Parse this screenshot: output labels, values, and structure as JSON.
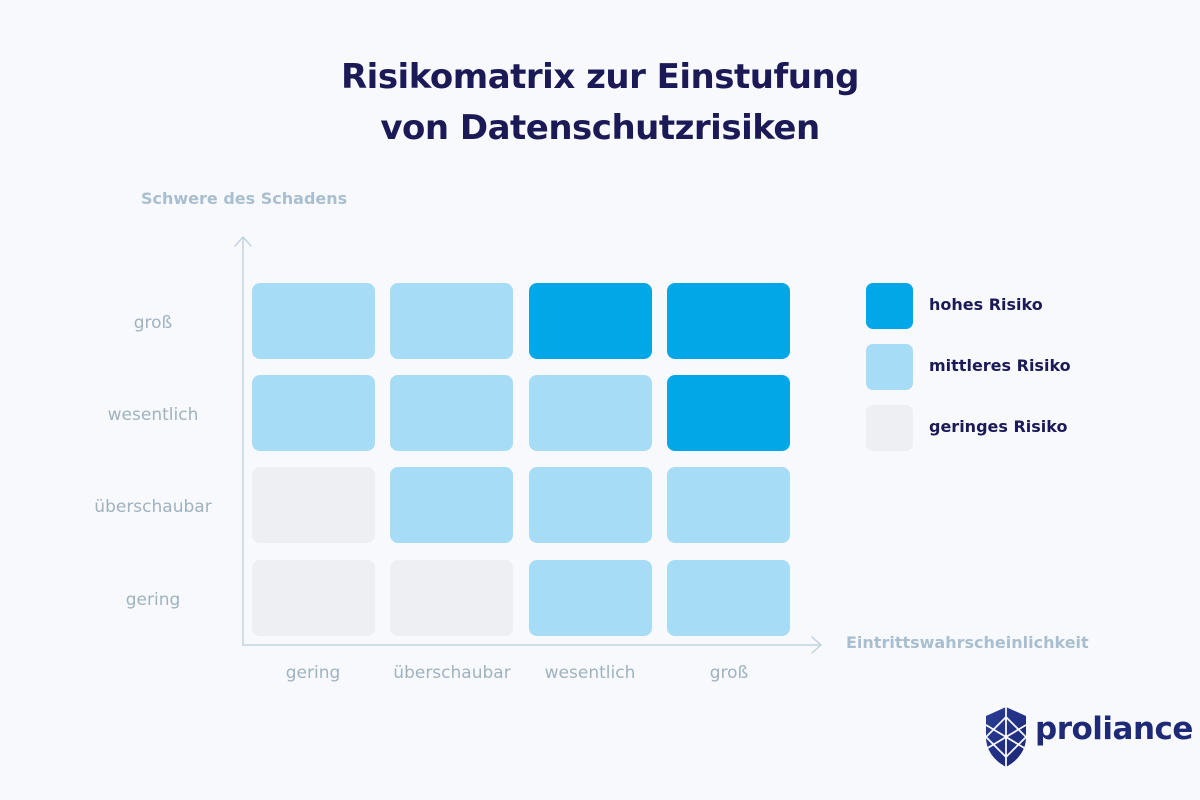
{
  "title": {
    "line1": "Risikomatrix zur Einstufung",
    "line2": "von Datenschutzrisiken"
  },
  "axes": {
    "y_title": "Schwere des Schadens",
    "x_title": "Eintrittswahrscheinlichkeit"
  },
  "rows": [
    "groß",
    "wesentlich",
    "überschaubar",
    "gering"
  ],
  "columns": [
    "gering",
    "überschaubar",
    "wesentlich",
    "groß"
  ],
  "matrix": [
    [
      "mittel",
      "mittel",
      "hoch",
      "hoch"
    ],
    [
      "mittel",
      "mittel",
      "mittel",
      "hoch"
    ],
    [
      "gering",
      "mittel",
      "mittel",
      "mittel"
    ],
    [
      "gering",
      "gering",
      "mittel",
      "mittel"
    ]
  ],
  "legend": [
    {
      "level": "hoch",
      "label": "hohes Risiko",
      "color": "#02a7e8"
    },
    {
      "level": "mittel",
      "label": "mittleres Risiko",
      "color": "#a6dcf5"
    },
    {
      "level": "gering",
      "label": "geringes Risiko",
      "color": "#eeeff2"
    }
  ],
  "logo": {
    "text": "proliance",
    "icon": "shield-icon",
    "color": "#1e2a78"
  }
}
